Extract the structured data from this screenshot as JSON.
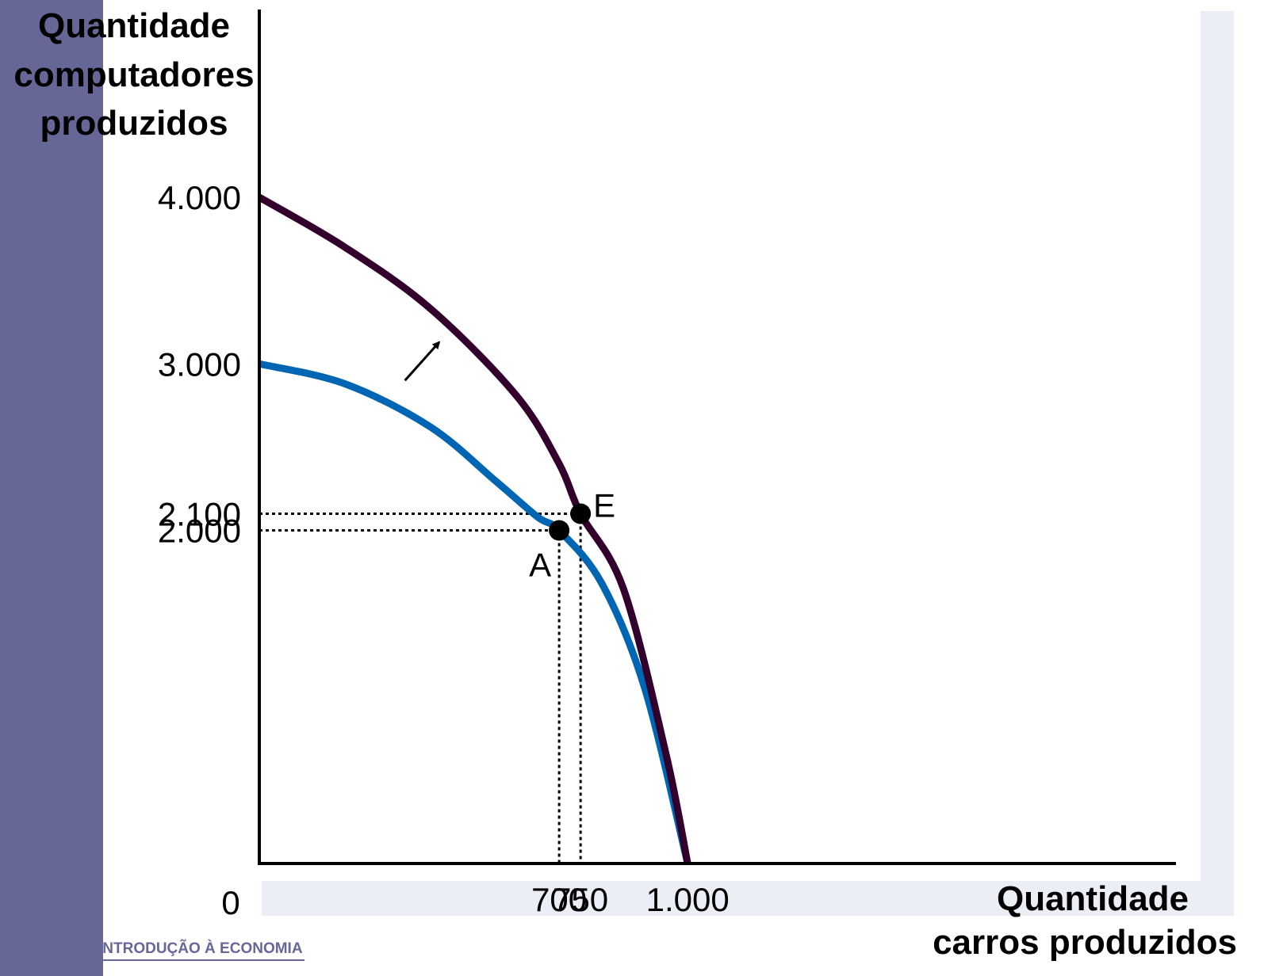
{
  "colors": {
    "side_bar": "#676797",
    "plot_shade": "#eceef5",
    "footer_text": "#676797",
    "curve_initial": "#0066b3",
    "curve_shifted": "#33002e",
    "axis": "#000000"
  },
  "footer": {
    "text": "INTRODUÇÃO À ECONOMIA"
  },
  "chart_data": {
    "type": "line",
    "title": "",
    "xlabel": [
      "Quantidade",
      "carros produzidos"
    ],
    "ylabel": [
      "Quantidade",
      "computadores",
      "produzidos"
    ],
    "xlim": [
      0,
      2140
    ],
    "ylim": [
      0,
      4000
    ],
    "grid": false,
    "origin_label": "0",
    "x_ticks": [
      {
        "value": 700,
        "label": "700"
      },
      {
        "value": 750,
        "label": "750"
      },
      {
        "value": 1000,
        "label": "1.000"
      }
    ],
    "y_ticks": [
      {
        "value": 4000,
        "label": "4.000"
      },
      {
        "value": 3000,
        "label": "3.000"
      },
      {
        "value": 2100,
        "label": "2.100"
      },
      {
        "value": 2000,
        "label": "2.000"
      }
    ],
    "series": [
      {
        "x": [
          0,
          200,
          400,
          550,
          650,
          700,
          800,
          900,
          1000
        ],
        "y": [
          3000,
          2880,
          2620,
          2300,
          2080,
          2000,
          1680,
          1050,
          0
        ]
      },
      {
        "x": [
          0,
          200,
          400,
          600,
          700,
          750,
          850,
          950,
          1000
        ],
        "y": [
          4000,
          3700,
          3330,
          2810,
          2400,
          2100,
          1650,
          650,
          0
        ]
      }
    ],
    "points": [
      {
        "label": "A",
        "x": 700,
        "y": 2000
      },
      {
        "label": "E",
        "x": 750,
        "y": 2100
      }
    ],
    "annotations": [
      {
        "type": "arrow",
        "from": [
          340,
          2900
        ],
        "to": [
          420,
          3130
        ]
      }
    ]
  }
}
